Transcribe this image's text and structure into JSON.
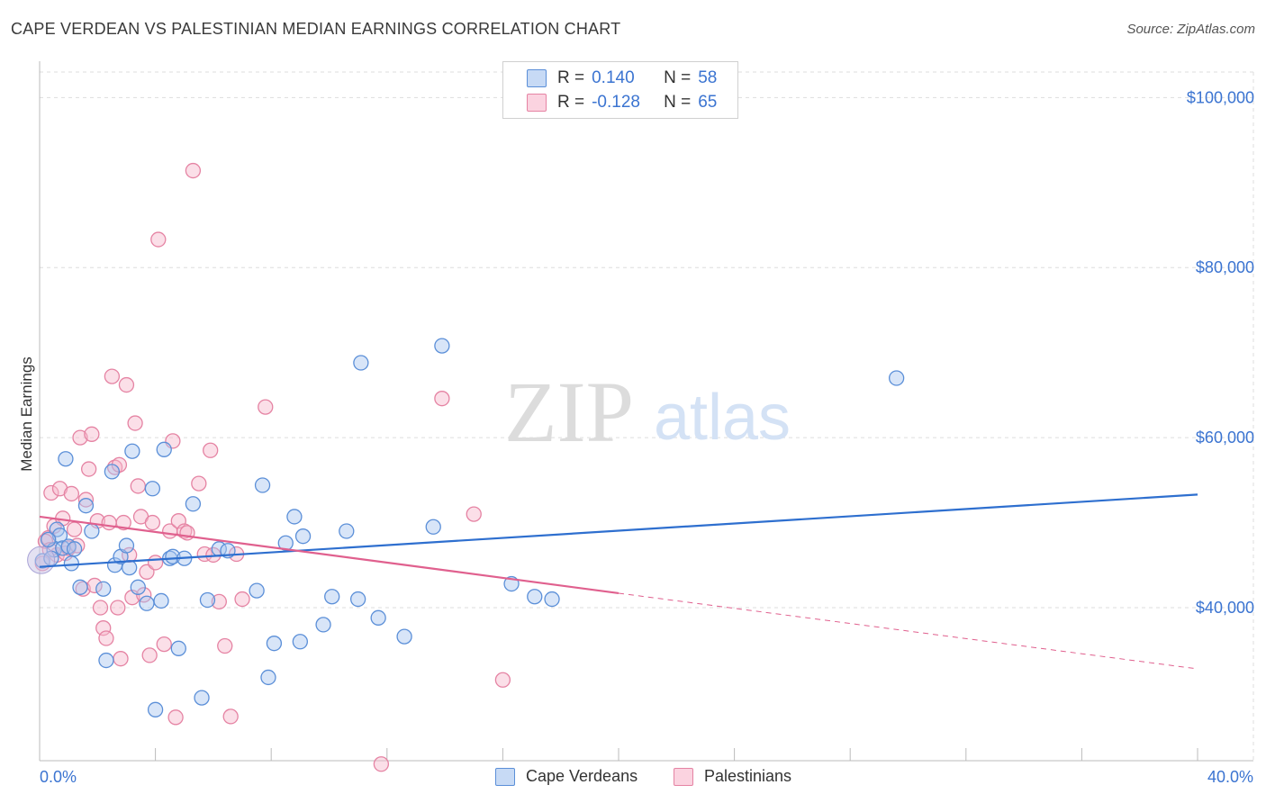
{
  "title": "CAPE VERDEAN VS PALESTINIAN MEDIAN EARNINGS CORRELATION CHART",
  "source": "Source: ZipAtlas.com",
  "watermark": {
    "zip": "ZIP",
    "atlas": "atlas"
  },
  "legend": {
    "rows": [
      {
        "r_label": "R =",
        "r_value": "0.140",
        "n_label": "N =",
        "n_value": "58"
      },
      {
        "r_label": "R =",
        "r_value": "-0.128",
        "n_label": "N =",
        "n_value": "65"
      }
    ]
  },
  "bottom_legend": {
    "series1": "Cape Verdeans",
    "series2": "Palestinians"
  },
  "colors": {
    "blue_fill": "#a9c6f0",
    "blue_stroke": "#5b8fd8",
    "blue_line": "#2e6fcf",
    "pink_fill": "#f6b7cb",
    "pink_stroke": "#e583a3",
    "pink_line": "#e0608e",
    "axis_text": "#3b74d1",
    "grid": "#dddddd"
  },
  "chart_data": {
    "type": "scatter",
    "title": "CAPE VERDEAN VS PALESTINIAN MEDIAN EARNINGS CORRELATION CHART",
    "xlabel": "",
    "ylabel": "Median Earnings",
    "xlim": [
      0,
      40
    ],
    "ylim": [
      22000,
      103000
    ],
    "x_tick_labels": [
      "0.0%",
      "40.0%"
    ],
    "y_ticks": [
      40000,
      60000,
      80000,
      100000
    ],
    "y_tick_labels": [
      "$40,000",
      "$60,000",
      "$80,000",
      "$100,000"
    ],
    "grid": true,
    "series": [
      {
        "name": "Cape Verdeans",
        "trend": {
          "x0": 0,
          "y0": 44800,
          "x1": 40,
          "y1": 53300
        },
        "points": [
          [
            0.1,
            45500
          ],
          [
            0.5,
            46800
          ],
          [
            0.6,
            49200
          ],
          [
            0.7,
            48500
          ],
          [
            0.8,
            47000
          ],
          [
            0.9,
            57500
          ],
          [
            1.0,
            47200
          ],
          [
            1.1,
            45200
          ],
          [
            1.2,
            46900
          ],
          [
            1.4,
            42400
          ],
          [
            1.6,
            52000
          ],
          [
            1.8,
            49000
          ],
          [
            2.2,
            42200
          ],
          [
            2.3,
            33800
          ],
          [
            2.5,
            56000
          ],
          [
            2.6,
            45000
          ],
          [
            2.8,
            46000
          ],
          [
            3.0,
            47300
          ],
          [
            3.1,
            44700
          ],
          [
            3.2,
            58400
          ],
          [
            3.4,
            42400
          ],
          [
            3.7,
            40500
          ],
          [
            3.9,
            54000
          ],
          [
            4.0,
            28000
          ],
          [
            4.2,
            40800
          ],
          [
            4.3,
            58600
          ],
          [
            4.5,
            45800
          ],
          [
            4.6,
            46000
          ],
          [
            4.8,
            35200
          ],
          [
            5.0,
            45800
          ],
          [
            5.3,
            52200
          ],
          [
            5.6,
            29400
          ],
          [
            5.8,
            40900
          ],
          [
            6.2,
            46900
          ],
          [
            6.5,
            46700
          ],
          [
            7.5,
            42000
          ],
          [
            7.7,
            54400
          ],
          [
            7.9,
            31800
          ],
          [
            8.1,
            35800
          ],
          [
            8.5,
            47600
          ],
          [
            8.8,
            50700
          ],
          [
            9.0,
            36000
          ],
          [
            9.1,
            48400
          ],
          [
            9.8,
            38000
          ],
          [
            10.1,
            41300
          ],
          [
            10.6,
            49000
          ],
          [
            11.0,
            41000
          ],
          [
            11.1,
            68800
          ],
          [
            11.7,
            38800
          ],
          [
            12.6,
            36600
          ],
          [
            13.6,
            49500
          ],
          [
            13.9,
            70800
          ],
          [
            16.3,
            42800
          ],
          [
            17.1,
            41300
          ],
          [
            17.7,
            41000
          ],
          [
            29.6,
            67000
          ],
          [
            0.3,
            48000
          ],
          [
            0.4,
            45800
          ]
        ]
      },
      {
        "name": "Palestinians",
        "trend": {
          "x0": 0,
          "y0": 50700,
          "x1": 20,
          "y1": 41700
        },
        "trend_dashed": {
          "x0": 20,
          "y0": 41700,
          "x1": 40,
          "y1": 32800
        },
        "points": [
          [
            0.1,
            45200
          ],
          [
            0.3,
            48200
          ],
          [
            0.4,
            53500
          ],
          [
            0.5,
            49600
          ],
          [
            0.6,
            46200
          ],
          [
            0.7,
            54000
          ],
          [
            0.8,
            50500
          ],
          [
            0.9,
            46400
          ],
          [
            1.0,
            47000
          ],
          [
            1.1,
            53400
          ],
          [
            1.2,
            49200
          ],
          [
            1.3,
            47300
          ],
          [
            1.4,
            60000
          ],
          [
            1.5,
            42200
          ],
          [
            1.6,
            52700
          ],
          [
            1.7,
            56300
          ],
          [
            1.8,
            60400
          ],
          [
            1.9,
            42600
          ],
          [
            2.0,
            50200
          ],
          [
            2.1,
            40000
          ],
          [
            2.2,
            37600
          ],
          [
            2.3,
            36400
          ],
          [
            2.4,
            50000
          ],
          [
            2.5,
            67200
          ],
          [
            2.6,
            56500
          ],
          [
            2.7,
            40000
          ],
          [
            2.8,
            34000
          ],
          [
            2.9,
            50000
          ],
          [
            3.0,
            66200
          ],
          [
            3.1,
            46200
          ],
          [
            3.2,
            41200
          ],
          [
            3.3,
            61700
          ],
          [
            3.4,
            54300
          ],
          [
            3.5,
            50700
          ],
          [
            3.6,
            41500
          ],
          [
            3.7,
            44200
          ],
          [
            3.8,
            34400
          ],
          [
            3.9,
            50000
          ],
          [
            4.0,
            45300
          ],
          [
            4.1,
            83300
          ],
          [
            4.3,
            35700
          ],
          [
            4.5,
            49000
          ],
          [
            4.6,
            59600
          ],
          [
            4.7,
            27100
          ],
          [
            4.8,
            50200
          ],
          [
            5.0,
            49000
          ],
          [
            5.1,
            48800
          ],
          [
            5.3,
            91400
          ],
          [
            5.5,
            54600
          ],
          [
            5.7,
            46300
          ],
          [
            5.9,
            58500
          ],
          [
            6.0,
            46200
          ],
          [
            6.2,
            40700
          ],
          [
            6.4,
            35500
          ],
          [
            6.6,
            27200
          ],
          [
            6.8,
            46300
          ],
          [
            7.0,
            41000
          ],
          [
            7.8,
            63600
          ],
          [
            11.8,
            21600
          ],
          [
            13.9,
            64600
          ],
          [
            15.0,
            51000
          ],
          [
            16.0,
            31500
          ],
          [
            0.2,
            47800
          ],
          [
            0.35,
            46800
          ],
          [
            2.75,
            56800
          ]
        ]
      }
    ]
  }
}
